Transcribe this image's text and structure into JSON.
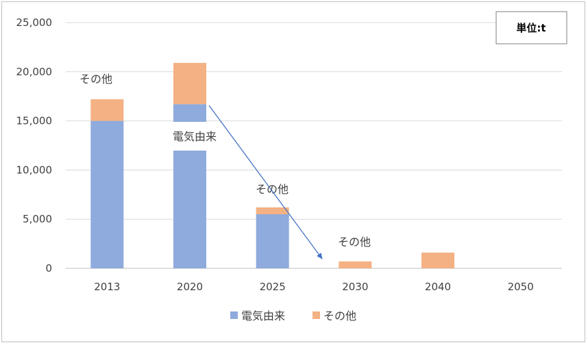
{
  "chart_data": {
    "type": "bar",
    "stacked": true,
    "categories": [
      "2013",
      "2020",
      "2025",
      "2030",
      "2040",
      "2050"
    ],
    "series": [
      {
        "name": "電気由来",
        "color": "#8faadc",
        "values": [
          15000,
          16700,
          5500,
          0,
          0,
          0
        ]
      },
      {
        "name": "その他",
        "color": "#f4b183",
        "values": [
          2200,
          4200,
          700,
          700,
          1600,
          0
        ]
      }
    ],
    "ylim": [
      0,
      25000
    ],
    "yticks": [
      "0",
      "5,000",
      "10,000",
      "15,000",
      "20,000",
      "25,000"
    ],
    "ytick_values": [
      0,
      5000,
      10000,
      15000,
      20000,
      25000
    ],
    "grid": true,
    "legend_position": "bottom",
    "unit_box": "単位:t",
    "annotations": [
      {
        "text": "その他",
        "category": "2013"
      },
      {
        "text": "電気由来",
        "category": "2020"
      },
      {
        "text": "その他",
        "category": "2025"
      },
      {
        "text": "その他",
        "category": "2030"
      }
    ],
    "trend_arrow": {
      "from_category": "2020",
      "to_category": "2030",
      "color": "#4472c4"
    }
  }
}
